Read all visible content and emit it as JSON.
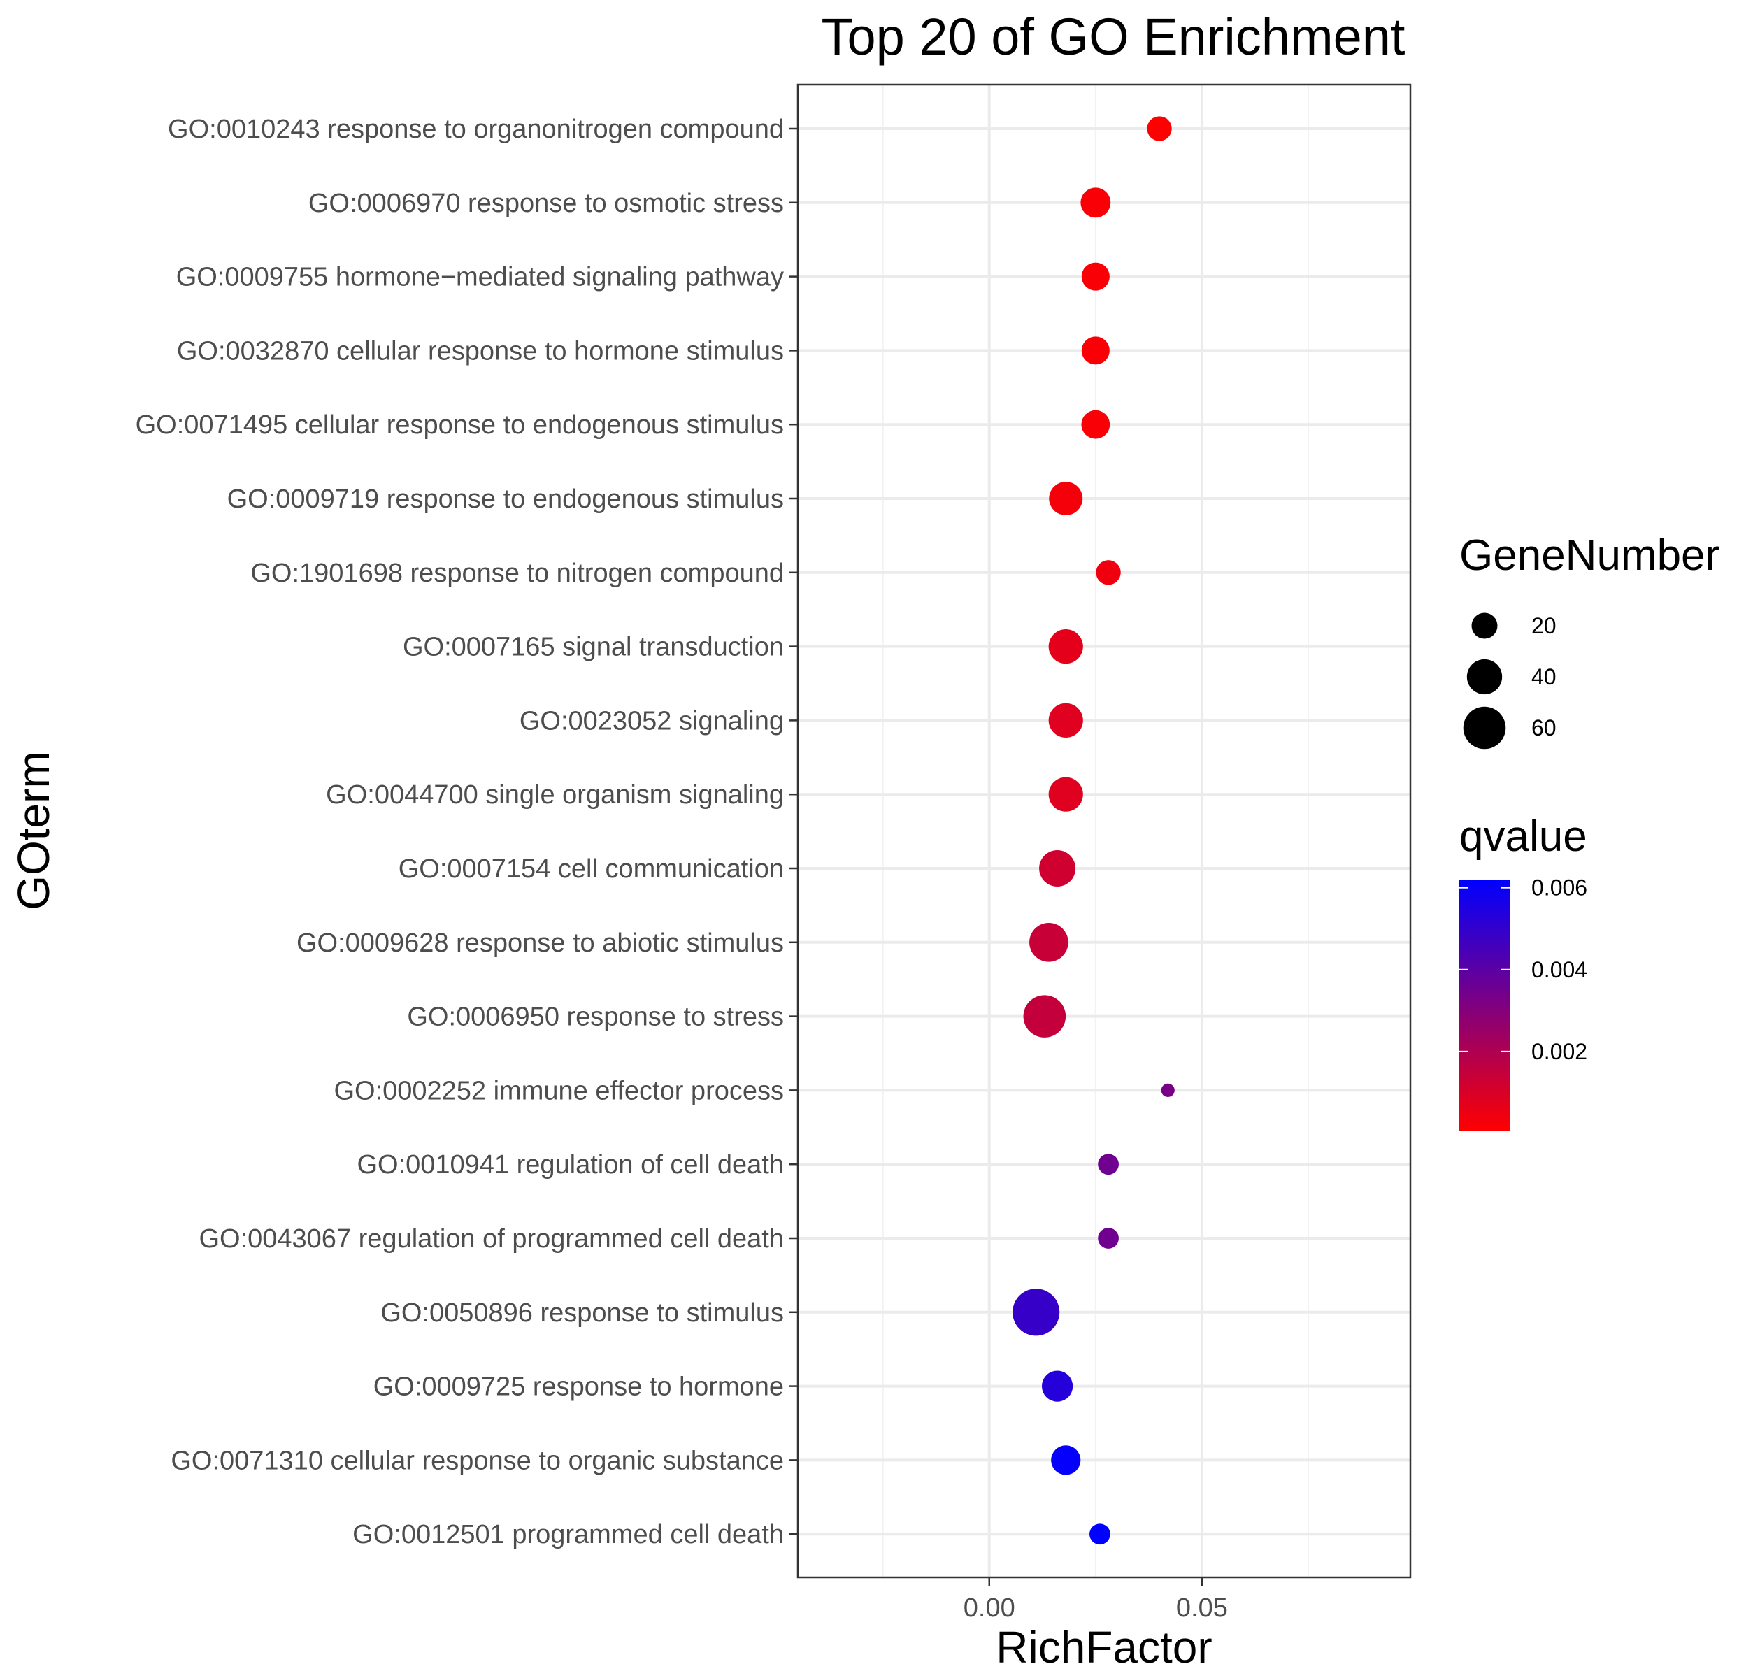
{
  "chart_data": {
    "type": "scatter",
    "title": "Top 20 of GO Enrichment",
    "xlabel": "RichFactor",
    "ylabel": "GOterm",
    "xlim": [
      -0.045,
      0.099
    ],
    "xticks": [
      0.0,
      0.05
    ],
    "xtick_labels": [
      "0.00",
      "0.05"
    ],
    "grid": true,
    "points": [
      {
        "term": "GO:0010243 response to organonitrogen compound",
        "x": 0.04,
        "gene_number": 18,
        "qvalue": 5e-05
      },
      {
        "term": "GO:0006970 response to osmotic stress",
        "x": 0.025,
        "gene_number": 28,
        "qvalue": 0.0002
      },
      {
        "term": "GO:0009755 hormone−mediated signaling pathway",
        "x": 0.025,
        "gene_number": 24,
        "qvalue": 0.0002
      },
      {
        "term": "GO:0032870 cellular response to hormone stimulus",
        "x": 0.025,
        "gene_number": 24,
        "qvalue": 0.0002
      },
      {
        "term": "GO:0071495 cellular response to endogenous stimulus",
        "x": 0.025,
        "gene_number": 25,
        "qvalue": 0.0002
      },
      {
        "term": "GO:0009719 response to endogenous stimulus",
        "x": 0.018,
        "gene_number": 36,
        "qvalue": 0.0003
      },
      {
        "term": "GO:1901698 response to nitrogen compound",
        "x": 0.028,
        "gene_number": 18,
        "qvalue": 0.0004
      },
      {
        "term": "GO:0007165 signal transduction",
        "x": 0.018,
        "gene_number": 38,
        "qvalue": 0.0007
      },
      {
        "term": "GO:0023052 signaling",
        "x": 0.018,
        "gene_number": 38,
        "qvalue": 0.0008
      },
      {
        "term": "GO:0044700 single organism signaling",
        "x": 0.018,
        "gene_number": 38,
        "qvalue": 0.0008
      },
      {
        "term": "GO:0007154 cell communication",
        "x": 0.016,
        "gene_number": 43,
        "qvalue": 0.0012
      },
      {
        "term": "GO:0009628 response to abiotic stimulus",
        "x": 0.014,
        "gene_number": 50,
        "qvalue": 0.0014
      },
      {
        "term": "GO:0006950 response to stress",
        "x": 0.013,
        "gene_number": 60,
        "qvalue": 0.0015
      },
      {
        "term": "GO:0002252 immune effector process",
        "x": 0.042,
        "gene_number": 4,
        "qvalue": 0.0033
      },
      {
        "term": "GO:0010941 regulation of cell death",
        "x": 0.028,
        "gene_number": 12,
        "qvalue": 0.0035
      },
      {
        "term": "GO:0043067 regulation of programmed cell death",
        "x": 0.028,
        "gene_number": 12,
        "qvalue": 0.0035
      },
      {
        "term": "GO:0050896 response to stimulus",
        "x": 0.011,
        "gene_number": 75,
        "qvalue": 0.0049
      },
      {
        "term": "GO:0009725 response to hormone",
        "x": 0.016,
        "gene_number": 30,
        "qvalue": 0.0053
      },
      {
        "term": "GO:0071310 cellular response to organic substance",
        "x": 0.018,
        "gene_number": 27,
        "qvalue": 0.0061
      },
      {
        "term": "GO:0012501 programmed cell death",
        "x": 0.026,
        "gene_number": 12,
        "qvalue": 0.0062
      }
    ],
    "size_legend": {
      "title": "GeneNumber",
      "values": [
        20,
        40,
        60
      ],
      "labels": [
        "20",
        "40",
        "60"
      ]
    },
    "color_legend": {
      "title": "qvalue",
      "low_color": "#ff0000",
      "high_color": "#0000ff",
      "range": [
        5e-05,
        0.0062
      ],
      "ticks": [
        0.002,
        0.004,
        0.006
      ],
      "tick_labels": [
        "0.002",
        "0.004",
        "0.006"
      ]
    }
  }
}
